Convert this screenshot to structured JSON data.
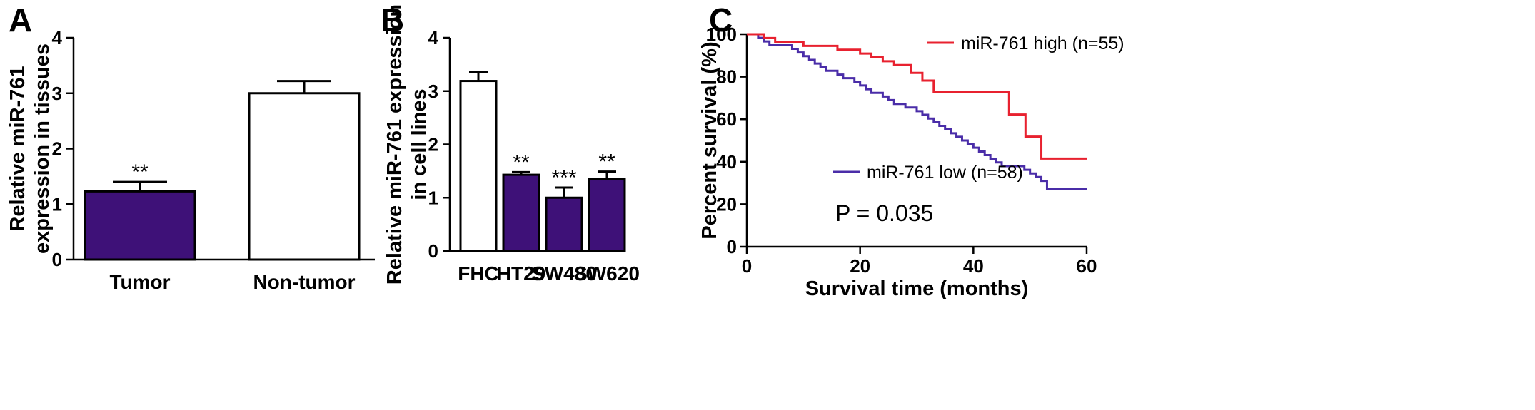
{
  "colors": {
    "purple": "#3E1178",
    "white": "#FFFFFF",
    "red": "#E8212F",
    "km_low": "#4A2DA8",
    "axis": "#000000"
  },
  "chart_data": [
    {
      "panel": "A",
      "type": "bar",
      "ylabel_lines": [
        "Relative miR-761",
        "expression  in tissues"
      ],
      "categories": [
        "Tumor",
        "Non-tumor"
      ],
      "values": [
        1.23,
        3.0
      ],
      "errors": [
        0.17,
        0.22
      ],
      "fills": [
        "purple",
        "white"
      ],
      "significance": [
        "**",
        ""
      ],
      "ylim": [
        0,
        4
      ],
      "yticks": [
        "0",
        "1",
        "2",
        "3",
        "4"
      ]
    },
    {
      "panel": "B",
      "type": "bar",
      "ylabel_lines": [
        "Relative miR-761 expression",
        "in cell lines"
      ],
      "categories": [
        "FHC",
        "HT29",
        "SW480",
        "SW620"
      ],
      "values": [
        3.19,
        1.43,
        1.0,
        1.35
      ],
      "errors": [
        0.17,
        0.05,
        0.19,
        0.14
      ],
      "fills": [
        "white",
        "purple",
        "purple",
        "purple"
      ],
      "significance": [
        "",
        "**",
        "***",
        "**"
      ],
      "ylim": [
        0,
        4
      ],
      "yticks": [
        "0",
        "1",
        "2",
        "3",
        "4"
      ]
    },
    {
      "panel": "C",
      "type": "line",
      "subtype": "kaplan-meier",
      "xlabel": "Survival time (months)",
      "ylabel": "Percent survival (%)",
      "xlim": [
        0,
        60
      ],
      "ylim": [
        0,
        100
      ],
      "xticks": [
        "0",
        "20",
        "40",
        "60"
      ],
      "yticks": [
        "0",
        "20",
        "40",
        "60",
        "80",
        "100"
      ],
      "series": [
        {
          "name": "miR-761 high (n=55)",
          "color": "red",
          "steps": [
            [
              0,
              100
            ],
            [
              3,
              98.2
            ],
            [
              5,
              96.4
            ],
            [
              10,
              94.5
            ],
            [
              16,
              92.7
            ],
            [
              20,
              90.9
            ],
            [
              22,
              89.1
            ],
            [
              24,
              87.3
            ],
            [
              26,
              85.5
            ],
            [
              29,
              81.8
            ],
            [
              31,
              78.2
            ],
            [
              33,
              72.7
            ],
            [
              46,
              72.7
            ],
            [
              46.3,
              62.2
            ],
            [
              48.8,
              62.2
            ],
            [
              49.2,
              51.8
            ],
            [
              51.6,
              51.8
            ],
            [
              52,
              41.5
            ],
            [
              60,
              41.5
            ]
          ]
        },
        {
          "name": "miR-761 low (n=58)",
          "color": "km_low",
          "steps": [
            [
              0,
              100
            ],
            [
              2,
              98.3
            ],
            [
              3,
              96.6
            ],
            [
              4,
              94.8
            ],
            [
              8,
              93.1
            ],
            [
              9,
              91.4
            ],
            [
              10,
              89.7
            ],
            [
              11,
              87.9
            ],
            [
              12,
              86.2
            ],
            [
              13,
              84.5
            ],
            [
              14,
              82.8
            ],
            [
              16,
              81.0
            ],
            [
              17,
              79.3
            ],
            [
              19,
              77.6
            ],
            [
              20,
              75.9
            ],
            [
              21,
              74.1
            ],
            [
              22,
              72.4
            ],
            [
              24,
              70.7
            ],
            [
              25,
              69.0
            ],
            [
              26,
              67.2
            ],
            [
              28,
              65.5
            ],
            [
              30,
              63.8
            ],
            [
              31,
              62.1
            ],
            [
              32,
              60.3
            ],
            [
              33,
              58.6
            ],
            [
              34,
              56.9
            ],
            [
              35,
              55.2
            ],
            [
              36,
              53.4
            ],
            [
              37,
              51.7
            ],
            [
              38,
              50.0
            ],
            [
              39,
              48.3
            ],
            [
              40,
              46.6
            ],
            [
              41,
              44.8
            ],
            [
              42,
              43.1
            ],
            [
              43,
              41.4
            ],
            [
              44,
              39.7
            ],
            [
              45,
              37.9
            ],
            [
              49,
              36.2
            ],
            [
              50,
              34.5
            ],
            [
              51,
              32.8
            ],
            [
              52,
              31.0
            ],
            [
              53,
              27.2
            ],
            [
              60,
              27.2
            ]
          ]
        }
      ],
      "annotation": "P = 0.035"
    }
  ]
}
